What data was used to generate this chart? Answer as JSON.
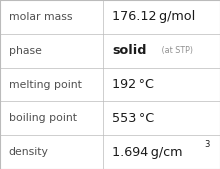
{
  "rows": [
    {
      "label": "molar mass",
      "value": "176.12 g/mol",
      "type": "normal"
    },
    {
      "label": "phase",
      "value": "solid",
      "value_suffix": " (at STP)",
      "type": "phase"
    },
    {
      "label": "melting point",
      "value": "192 °C",
      "type": "normal"
    },
    {
      "label": "boiling point",
      "value": "553 °C",
      "type": "normal"
    },
    {
      "label": "density",
      "value": "1.694 g/cm",
      "superscript": "3",
      "type": "super"
    }
  ],
  "col_split": 0.47,
  "bg_color": "#ffffff",
  "grid_color": "#bbbbbb",
  "label_color": "#505050",
  "value_color": "#1a1a1a",
  "suffix_color": "#909090",
  "label_fontsize": 7.8,
  "value_fontsize": 9.2,
  "suffix_fontsize": 5.8,
  "super_fontsize": 6.0
}
